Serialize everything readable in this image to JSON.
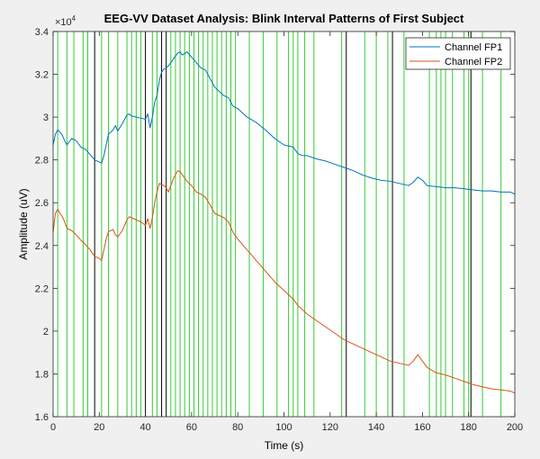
{
  "chart_data": {
    "type": "line",
    "title": "EEG-VV Dataset Analysis: Blink Interval Patterns of First Subject",
    "xlabel": "Time (s)",
    "ylabel": "Amplitude (uV)",
    "xlim": [
      0,
      200
    ],
    "ylim": [
      16000,
      34000
    ],
    "y_exponent_label": "×10",
    "y_exponent_power": "4",
    "x_ticks": [
      0,
      20,
      40,
      60,
      80,
      100,
      120,
      140,
      160,
      180,
      200
    ],
    "x_tick_labels": [
      "0",
      "20",
      "40",
      "60",
      "80",
      "100",
      "120",
      "140",
      "160",
      "180",
      "200"
    ],
    "y_ticks": [
      16000,
      18000,
      20000,
      22000,
      24000,
      26000,
      28000,
      30000,
      32000,
      34000
    ],
    "y_tick_labels": [
      "1.6",
      "1.8",
      "2",
      "2.2",
      "2.4",
      "2.6",
      "2.8",
      "3",
      "3.2",
      "3.4"
    ],
    "grid": false,
    "legend_position": "top-right",
    "series": [
      {
        "name": "Channel FP1",
        "color": "#0072bd",
        "x": [
          0,
          1,
          2,
          3,
          4,
          5,
          6,
          8,
          10,
          12,
          14,
          16,
          18,
          20,
          21,
          22,
          23,
          24,
          26,
          27,
          28,
          30,
          32,
          33,
          34,
          36,
          38,
          40,
          41,
          42,
          43,
          44,
          45,
          46,
          47,
          48,
          49,
          50,
          52,
          54,
          55,
          56,
          58,
          60,
          62,
          64,
          66,
          68,
          70,
          72,
          74,
          76,
          78,
          80,
          84,
          88,
          92,
          96,
          100,
          104,
          106,
          108,
          110,
          114,
          118,
          122,
          126,
          130,
          134,
          138,
          142,
          146,
          150,
          154,
          156,
          158,
          160,
          162,
          166,
          170,
          174,
          178,
          182,
          186,
          190,
          194,
          198,
          200
        ],
        "values": [
          28700,
          29200,
          29400,
          29300,
          29150,
          28900,
          28700,
          29000,
          28900,
          28600,
          28500,
          28250,
          28000,
          27900,
          27850,
          28200,
          28700,
          29200,
          29400,
          29600,
          29350,
          29700,
          30100,
          30150,
          30050,
          30000,
          29950,
          29900,
          30150,
          29500,
          30000,
          30700,
          31000,
          31700,
          32100,
          32250,
          32300,
          32400,
          32700,
          33000,
          33050,
          32900,
          33050,
          32800,
          32550,
          32300,
          32200,
          31800,
          31400,
          31200,
          31000,
          30900,
          30500,
          30400,
          30000,
          29750,
          29400,
          29000,
          28700,
          28600,
          28300,
          28200,
          28200,
          28050,
          27950,
          27800,
          27650,
          27500,
          27300,
          27150,
          27050,
          27000,
          26900,
          26800,
          26950,
          27200,
          27050,
          26800,
          26750,
          26700,
          26700,
          26650,
          26600,
          26550,
          26550,
          26500,
          26500,
          26400
        ]
      },
      {
        "name": "Channel FP2",
        "color": "#d95319",
        "x": [
          0,
          1,
          2,
          3,
          4,
          5,
          6,
          8,
          10,
          12,
          14,
          16,
          18,
          20,
          21,
          22,
          23,
          24,
          26,
          27,
          28,
          30,
          32,
          33,
          34,
          36,
          38,
          40,
          41,
          42,
          43,
          44,
          45,
          46,
          47,
          48,
          49,
          50,
          52,
          54,
          55,
          56,
          58,
          60,
          62,
          64,
          66,
          68,
          70,
          72,
          74,
          76,
          78,
          80,
          84,
          88,
          92,
          96,
          100,
          104,
          106,
          108,
          110,
          114,
          118,
          122,
          126,
          130,
          134,
          138,
          142,
          146,
          150,
          154,
          156,
          158,
          160,
          162,
          166,
          170,
          174,
          178,
          182,
          186,
          190,
          194,
          198,
          200
        ],
        "values": [
          24600,
          25500,
          25700,
          25500,
          25350,
          25100,
          24800,
          24700,
          24500,
          24250,
          24050,
          23800,
          23500,
          23400,
          23300,
          23800,
          24300,
          24650,
          24750,
          24500,
          24400,
          24700,
          25200,
          25350,
          25300,
          25200,
          25100,
          24950,
          25250,
          24800,
          25300,
          26000,
          26500,
          26900,
          26850,
          26800,
          26700,
          26500,
          27100,
          27500,
          27450,
          27300,
          27000,
          26800,
          26500,
          26400,
          26250,
          25900,
          25500,
          25400,
          25300,
          25100,
          24600,
          24300,
          23800,
          23300,
          22800,
          22300,
          21900,
          21500,
          21200,
          21000,
          20800,
          20500,
          20200,
          19900,
          19600,
          19400,
          19200,
          19000,
          18800,
          18600,
          18500,
          18400,
          18600,
          18900,
          18600,
          18300,
          18050,
          17950,
          17800,
          17650,
          17500,
          17400,
          17300,
          17250,
          17200,
          17100
        ]
      }
    ],
    "markers_green": [
      2,
      6,
      9,
      13,
      15,
      21,
      24,
      28,
      32,
      34,
      36,
      38,
      43,
      45,
      51,
      53,
      55,
      57,
      59,
      61,
      63,
      65,
      67,
      69,
      71,
      73,
      75,
      77,
      79,
      85,
      91,
      97,
      102,
      104,
      106,
      109,
      113,
      125,
      135,
      140,
      145,
      152,
      163,
      166,
      168,
      170,
      173,
      178,
      180,
      186,
      194
    ],
    "markers_green_color": "#33cc33",
    "markers_black": [
      18,
      40,
      47,
      49,
      127,
      147,
      181
    ],
    "markers_black_color": "#000000"
  }
}
